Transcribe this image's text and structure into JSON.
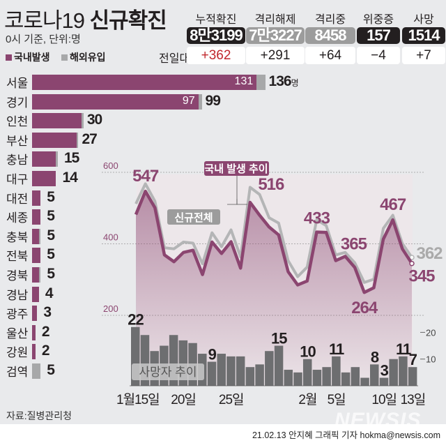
{
  "header": {
    "title_light": "코로나19 ",
    "title_bold": "신규확진",
    "subtitle": "0시 기준, 단위:명",
    "legend": [
      {
        "label": "국내발생",
        "color": "#8b4570"
      },
      {
        "label": "해외유입",
        "color": "#a7a8a9"
      }
    ],
    "diff_label": "전일대비"
  },
  "stats": [
    {
      "label": "누적확진",
      "value": "8만3199",
      "diff": "+362",
      "bg": "#231f20",
      "diff_color": "#c1272d"
    },
    {
      "label": "격리해제",
      "value": "7만3227",
      "diff": "+291",
      "bg": "#9c9c9c",
      "diff_color": "#231f20"
    },
    {
      "label": "격리중",
      "value": "8458",
      "diff": "+64",
      "bg": "#9c9c9c",
      "diff_color": "#231f20"
    },
    {
      "label": "위중증",
      "value": "157",
      "diff": "−4",
      "bg": "#231f20",
      "diff_color": "#231f20"
    },
    {
      "label": "사망",
      "value": "1514",
      "diff": "+7",
      "bg": "#231f20",
      "diff_color": "#231f20"
    }
  ],
  "regions": [
    {
      "name": "서울",
      "domestic": 131,
      "imported": 5,
      "total": "136",
      "unit": "명",
      "inner": "131"
    },
    {
      "name": "경기",
      "domestic": 97,
      "imported": 2,
      "total": "99",
      "inner": "97"
    },
    {
      "name": "인천",
      "domestic": 29,
      "imported": 1,
      "total": "30"
    },
    {
      "name": "부산",
      "domestic": 26,
      "imported": 1,
      "total": "27"
    },
    {
      "name": "충남",
      "domestic": 14,
      "imported": 1,
      "total": "15"
    },
    {
      "name": "대구",
      "domestic": 14,
      "imported": 0,
      "total": "14"
    },
    {
      "name": "대전",
      "domestic": 5,
      "imported": 0,
      "total": "5"
    },
    {
      "name": "세종",
      "domestic": 5,
      "imported": 0,
      "total": "5"
    },
    {
      "name": "충북",
      "domestic": 4,
      "imported": 1,
      "total": "5"
    },
    {
      "name": "전북",
      "domestic": 5,
      "imported": 0,
      "total": "5"
    },
    {
      "name": "경북",
      "domestic": 4,
      "imported": 1,
      "total": "5"
    },
    {
      "name": "경남",
      "domestic": 4,
      "imported": 0,
      "total": "4"
    },
    {
      "name": "광주",
      "domestic": 3,
      "imported": 0,
      "total": "3"
    },
    {
      "name": "울산",
      "domestic": 2,
      "imported": 0,
      "total": "2"
    },
    {
      "name": "강원",
      "domestic": 2,
      "imported": 0,
      "total": "2"
    },
    {
      "name": "검역",
      "domestic": 0,
      "imported": 5,
      "total": "5"
    }
  ],
  "chart_data": [
    {
      "type": "line",
      "y_ticks": [
        "600",
        "400",
        "200"
      ],
      "ylim": [
        200,
        600
      ],
      "series": [
        {
          "name": "국내 발생 추이",
          "color": "#8b4570",
          "values": [
            482,
            547,
            501,
            369,
            350,
            376,
            382,
            314,
            405,
            373,
            406,
            332,
            516,
            480,
            447,
            425,
            322,
            285,
            296,
            433,
            432,
            353,
            365,
            334,
            264,
            277,
            413,
            467,
            386,
            345
          ],
          "labels": {
            "1": "547",
            "12": "516",
            "19": "433",
            "22": "365",
            "24": "264",
            "27": "467",
            "29": "345"
          }
        },
        {
          "name": "신규전체",
          "color": "#b4b5b6",
          "values": [
            512,
            568,
            519,
            389,
            386,
            405,
            402,
            344,
            431,
            392,
            439,
            363,
            558,
            538,
            473,
            458,
            353,
            308,
            335,
            467,
            451,
            369,
            376,
            347,
            292,
            301,
            443,
            480,
            401,
            362
          ],
          "labels": {
            "29": "362"
          }
        }
      ]
    },
    {
      "type": "bar",
      "name": "사망자 추이",
      "color": "#6d6e70",
      "y_ticks": [
        "20",
        "10"
      ],
      "values": [
        22,
        19,
        13,
        15,
        19,
        17,
        16,
        12,
        9,
        12,
        11,
        11,
        7,
        8,
        13,
        15,
        6,
        5,
        10,
        6,
        7,
        11,
        5,
        7,
        3,
        8,
        3,
        10,
        11,
        7
      ],
      "labels": {
        "0": "22",
        "8": "9",
        "15": "15",
        "18": "10",
        "21": "11",
        "25": "8",
        "26": "3",
        "28": "11",
        "29": "7"
      }
    },
    {
      "x_labels": [
        {
          "i": 0,
          "t": "1월15일"
        },
        {
          "i": 5,
          "t": "20일"
        },
        {
          "i": 10,
          "t": "25일"
        },
        {
          "i": 18,
          "t": "2월"
        },
        {
          "i": 21,
          "t": "5일"
        },
        {
          "i": 26,
          "t": "10일"
        },
        {
          "i": 29,
          "t": "13일"
        }
      ]
    }
  ],
  "footer": {
    "source": "자료:질병관리청",
    "credit": "21.02.13 안지혜 그래픽 기자 hokma@newsis.com",
    "watermark": "NEWSIS"
  }
}
